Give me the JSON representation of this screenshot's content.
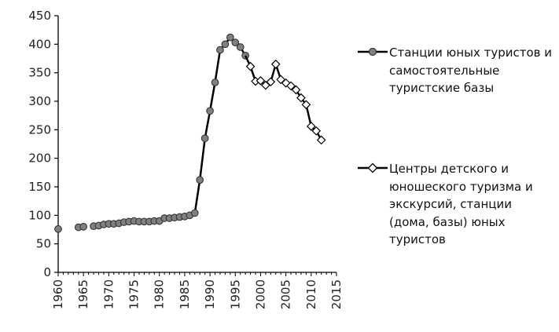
{
  "chart_data": {
    "type": "line",
    "title": "",
    "xlabel": "",
    "ylabel": "",
    "xlim": [
      1960,
      2015
    ],
    "ylim": [
      0,
      450
    ],
    "x_ticks": [
      "1960",
      "1965",
      "1970",
      "1975",
      "1980",
      "1985",
      "1990",
      "1995",
      "2000",
      "2005",
      "2010",
      "2015"
    ],
    "y_ticks": [
      "0",
      "50",
      "100",
      "150",
      "200",
      "250",
      "300",
      "350",
      "400",
      "450"
    ],
    "grid": false,
    "legend_position": "right",
    "series": [
      {
        "name": "Станции юных туристов и самостоятельные туристские базы",
        "marker": "circle",
        "color": "#000000",
        "marker_fill": "#808080",
        "points": [
          [
            1960,
            76
          ],
          [
            1964,
            79
          ],
          [
            1965,
            80
          ],
          [
            1967,
            81
          ],
          [
            1968,
            82
          ],
          [
            1969,
            84
          ],
          [
            1970,
            85
          ],
          [
            1971,
            85
          ],
          [
            1972,
            86
          ],
          [
            1973,
            88
          ],
          [
            1974,
            89
          ],
          [
            1975,
            90
          ],
          [
            1976,
            89
          ],
          [
            1977,
            89
          ],
          [
            1978,
            89
          ],
          [
            1979,
            90
          ],
          [
            1980,
            90
          ],
          [
            1981,
            95
          ],
          [
            1982,
            95
          ],
          [
            1983,
            96
          ],
          [
            1984,
            97
          ],
          [
            1985,
            98
          ],
          [
            1986,
            100
          ],
          [
            1987,
            104
          ],
          [
            1988,
            162
          ],
          [
            1989,
            235
          ],
          [
            1990,
            283
          ],
          [
            1991,
            333
          ],
          [
            1992,
            390
          ],
          [
            1993,
            400
          ],
          [
            1994,
            412
          ],
          [
            1995,
            403
          ],
          [
            1996,
            395
          ],
          [
            1997,
            380
          ]
        ]
      },
      {
        "name": "Центры детского и юношеского туризма и экскурсий, станции (дома, базы) юных туристов",
        "marker": "diamond",
        "color": "#000000",
        "marker_fill": "#ffffff",
        "points": [
          [
            1998,
            361
          ],
          [
            1999,
            335
          ],
          [
            2000,
            336
          ],
          [
            2001,
            328
          ],
          [
            2002,
            334
          ],
          [
            2003,
            365
          ],
          [
            2004,
            338
          ],
          [
            2005,
            332
          ],
          [
            2006,
            327
          ],
          [
            2007,
            320
          ],
          [
            2008,
            306
          ],
          [
            2009,
            294
          ],
          [
            2010,
            256
          ],
          [
            2011,
            248
          ],
          [
            2012,
            232
          ]
        ]
      }
    ]
  }
}
